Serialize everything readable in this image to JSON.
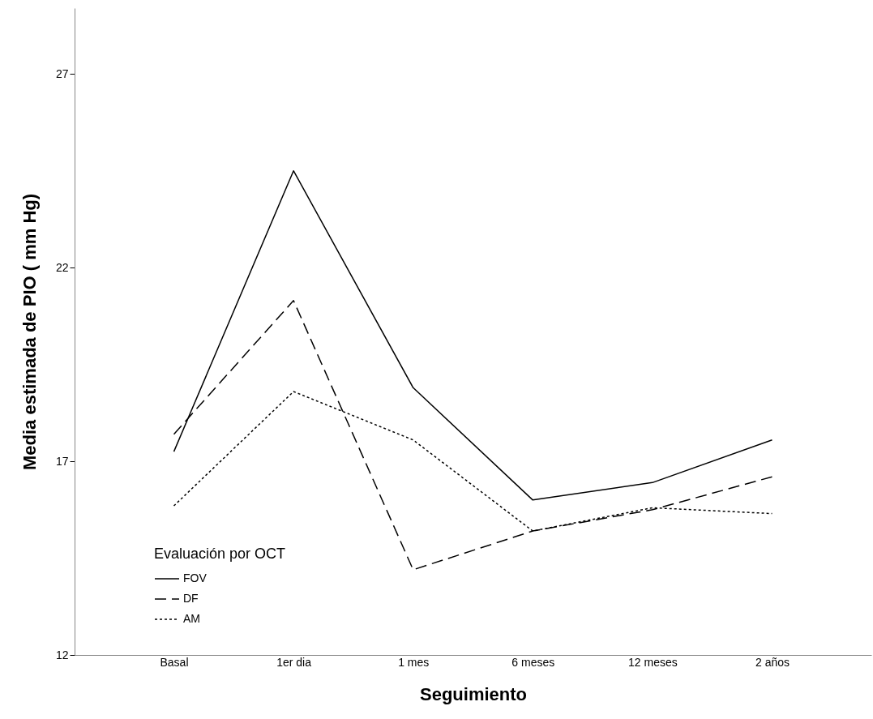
{
  "chart_data": {
    "type": "line",
    "xlabel": "Seguimiento",
    "ylabel": "Media estimada de PIO ( mm Hg)",
    "legend_title": "Evaluación por OCT",
    "categories": [
      "Basal",
      "1er dia",
      "1 mes",
      "6 meses",
      "12 meses",
      "2 años"
    ],
    "series": [
      {
        "name": "FOV",
        "color": "#000000",
        "line_style": "solid",
        "values": [
          17.25,
          24.5,
          18.9,
          16.0,
          16.45,
          17.55
        ]
      },
      {
        "name": "DF",
        "color": "#000000",
        "line_style": "dashed",
        "values": [
          17.7,
          21.15,
          14.2,
          15.2,
          15.75,
          16.6
        ]
      },
      {
        "name": "AM",
        "color": "#000000",
        "line_style": "dotted",
        "values": [
          15.85,
          18.8,
          17.55,
          15.2,
          15.8,
          15.65
        ]
      }
    ],
    "ylim": [
      12,
      28.7
    ],
    "yticks": [
      12,
      17,
      22,
      27
    ],
    "grid": false,
    "legend": "bottom left",
    "marker": "none"
  }
}
